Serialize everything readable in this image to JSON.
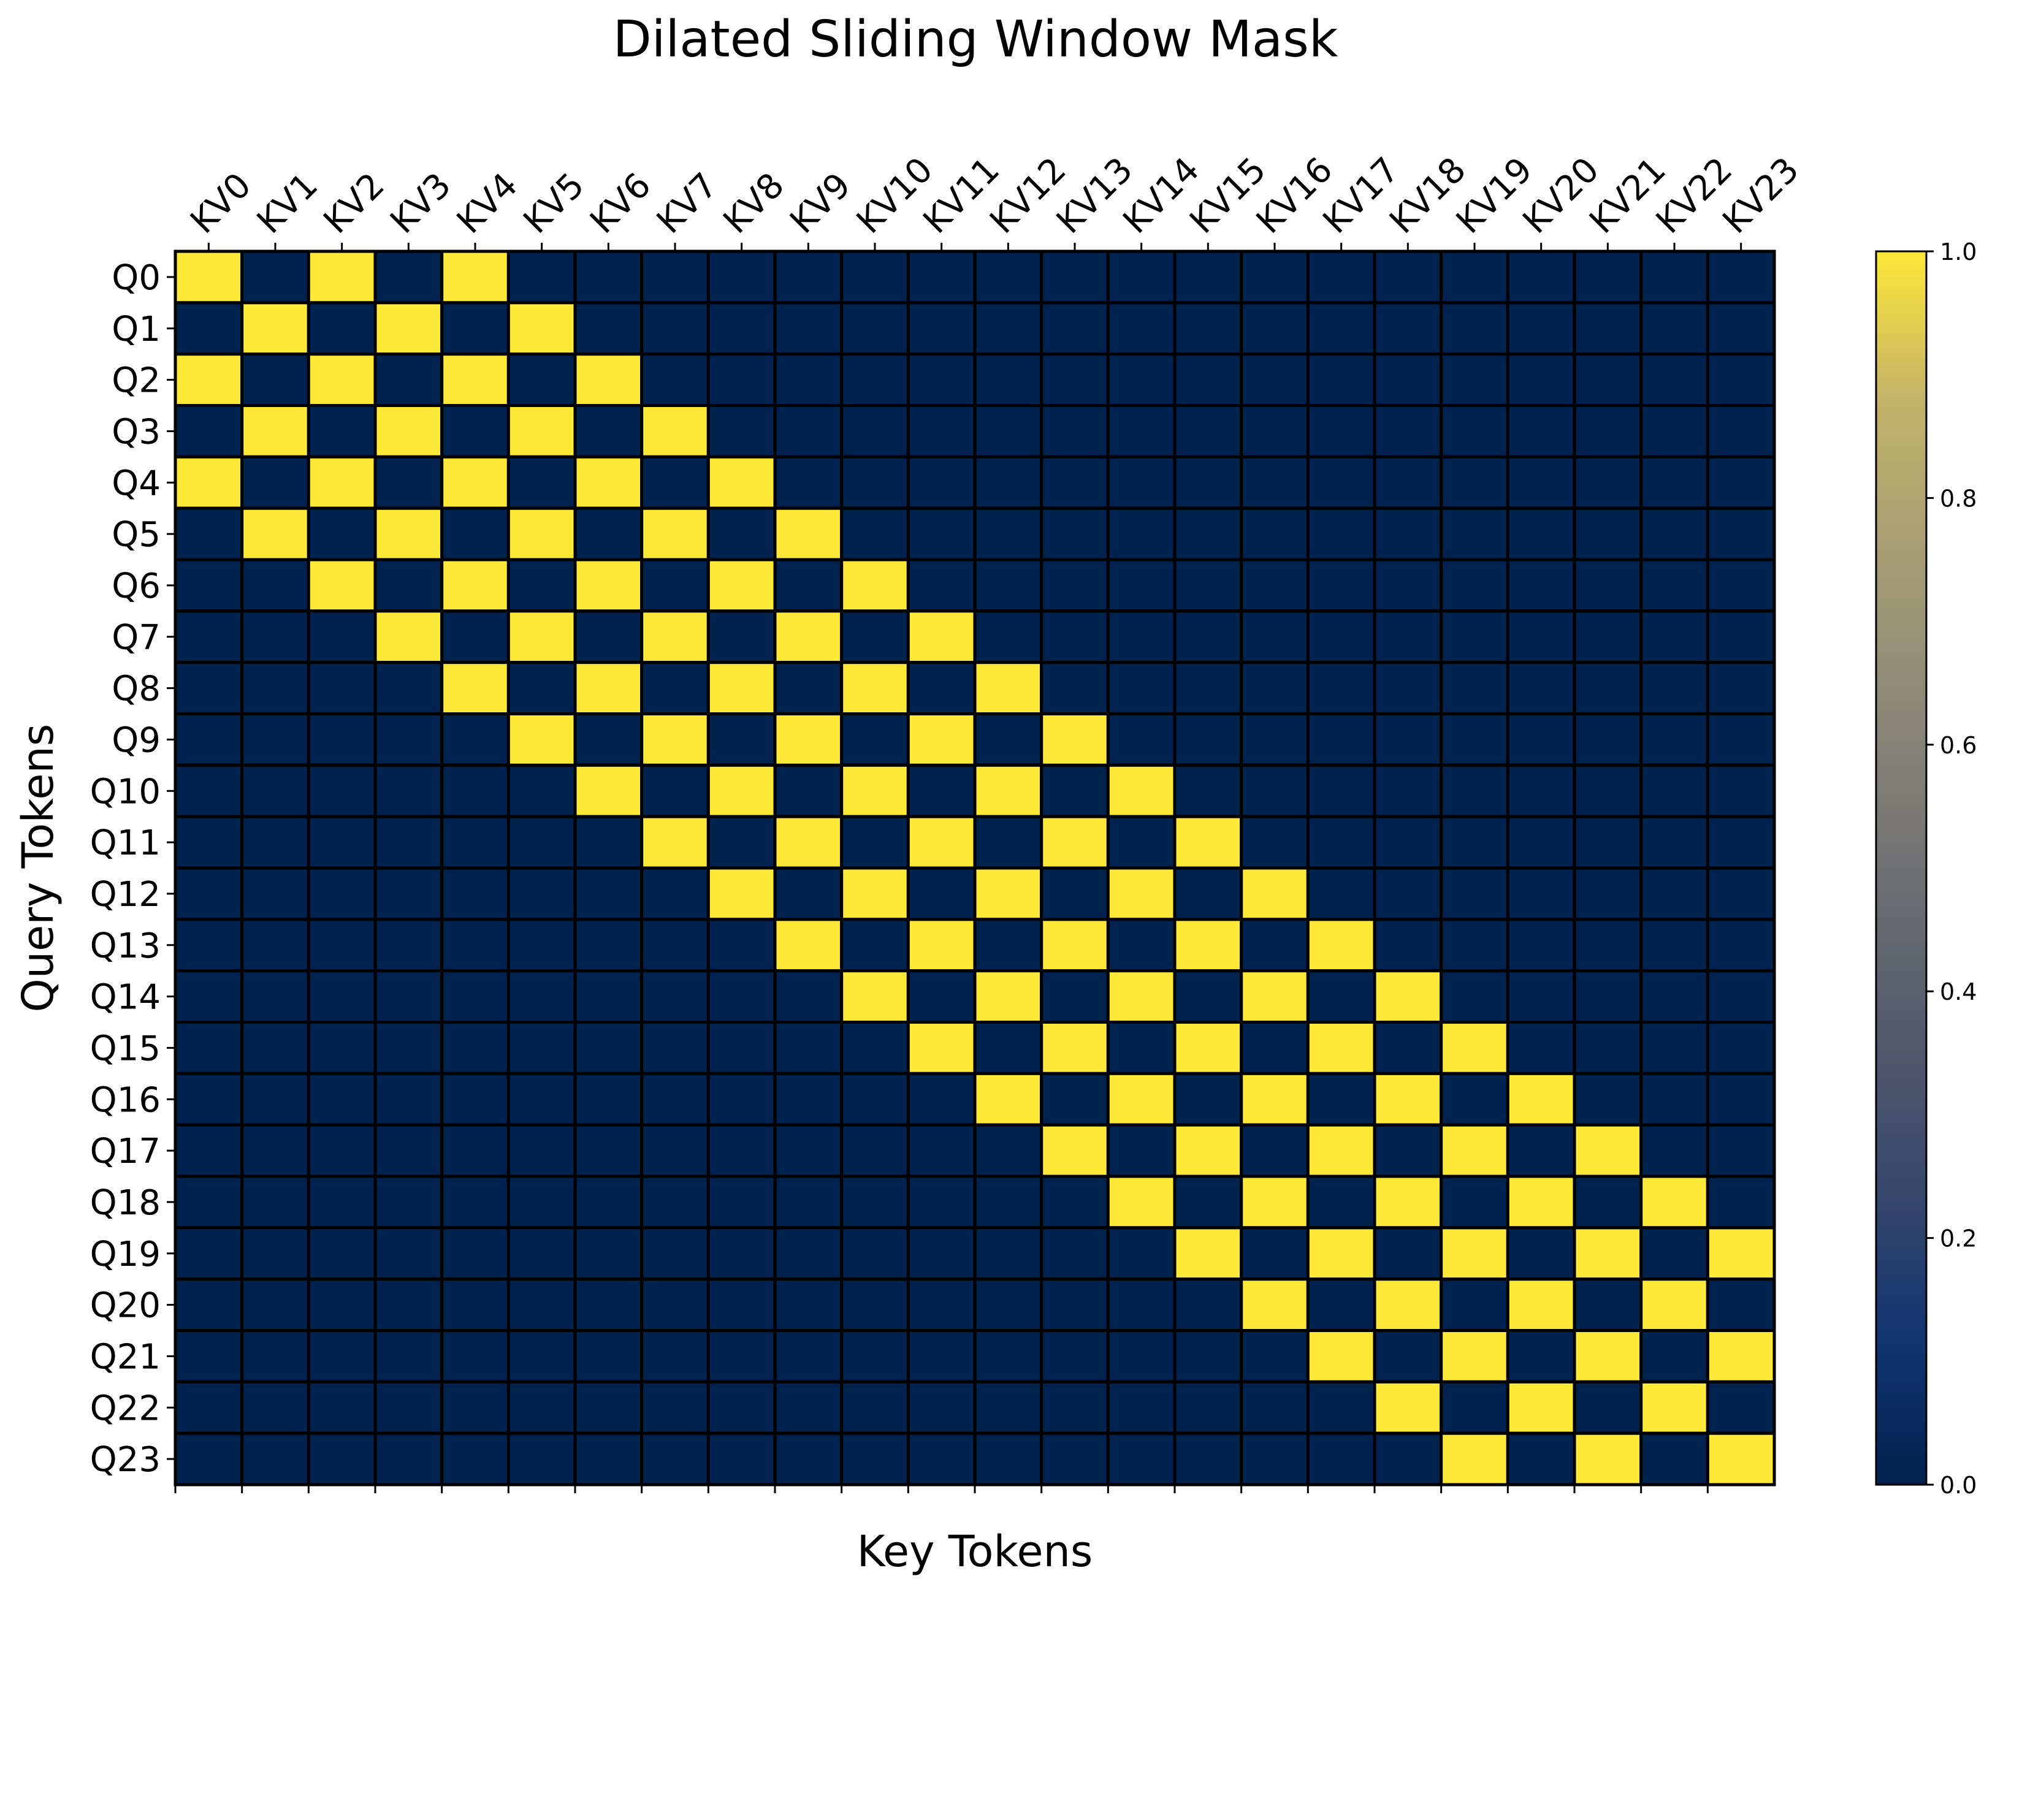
{
  "chart_data": {
    "type": "heatmap",
    "title": "Dilated Sliding Window Mask",
    "xlabel": "Key Tokens",
    "ylabel": "Query Tokens",
    "x_categories": [
      "KV0",
      "KV1",
      "KV2",
      "KV3",
      "KV4",
      "KV5",
      "KV6",
      "KV7",
      "KV8",
      "KV9",
      "KV10",
      "KV11",
      "KV12",
      "KV13",
      "KV14",
      "KV15",
      "KV16",
      "KV17",
      "KV18",
      "KV19",
      "KV20",
      "KV21",
      "KV22",
      "KV23"
    ],
    "y_categories": [
      "Q0",
      "Q1",
      "Q2",
      "Q3",
      "Q4",
      "Q5",
      "Q6",
      "Q7",
      "Q8",
      "Q9",
      "Q10",
      "Q11",
      "Q12",
      "Q13",
      "Q14",
      "Q15",
      "Q16",
      "Q17",
      "Q18",
      "Q19",
      "Q20",
      "Q21",
      "Q22",
      "Q23"
    ],
    "values": [
      [
        1,
        0,
        1,
        0,
        1,
        0,
        0,
        0,
        0,
        0,
        0,
        0,
        0,
        0,
        0,
        0,
        0,
        0,
        0,
        0,
        0,
        0,
        0,
        0
      ],
      [
        0,
        1,
        0,
        1,
        0,
        1,
        0,
        0,
        0,
        0,
        0,
        0,
        0,
        0,
        0,
        0,
        0,
        0,
        0,
        0,
        0,
        0,
        0,
        0
      ],
      [
        1,
        0,
        1,
        0,
        1,
        0,
        1,
        0,
        0,
        0,
        0,
        0,
        0,
        0,
        0,
        0,
        0,
        0,
        0,
        0,
        0,
        0,
        0,
        0
      ],
      [
        0,
        1,
        0,
        1,
        0,
        1,
        0,
        1,
        0,
        0,
        0,
        0,
        0,
        0,
        0,
        0,
        0,
        0,
        0,
        0,
        0,
        0,
        0,
        0
      ],
      [
        1,
        0,
        1,
        0,
        1,
        0,
        1,
        0,
        1,
        0,
        0,
        0,
        0,
        0,
        0,
        0,
        0,
        0,
        0,
        0,
        0,
        0,
        0,
        0
      ],
      [
        0,
        1,
        0,
        1,
        0,
        1,
        0,
        1,
        0,
        1,
        0,
        0,
        0,
        0,
        0,
        0,
        0,
        0,
        0,
        0,
        0,
        0,
        0,
        0
      ],
      [
        0,
        0,
        1,
        0,
        1,
        0,
        1,
        0,
        1,
        0,
        1,
        0,
        0,
        0,
        0,
        0,
        0,
        0,
        0,
        0,
        0,
        0,
        0,
        0
      ],
      [
        0,
        0,
        0,
        1,
        0,
        1,
        0,
        1,
        0,
        1,
        0,
        1,
        0,
        0,
        0,
        0,
        0,
        0,
        0,
        0,
        0,
        0,
        0,
        0
      ],
      [
        0,
        0,
        0,
        0,
        1,
        0,
        1,
        0,
        1,
        0,
        1,
        0,
        1,
        0,
        0,
        0,
        0,
        0,
        0,
        0,
        0,
        0,
        0,
        0
      ],
      [
        0,
        0,
        0,
        0,
        0,
        1,
        0,
        1,
        0,
        1,
        0,
        1,
        0,
        1,
        0,
        0,
        0,
        0,
        0,
        0,
        0,
        0,
        0,
        0
      ],
      [
        0,
        0,
        0,
        0,
        0,
        0,
        1,
        0,
        1,
        0,
        1,
        0,
        1,
        0,
        1,
        0,
        0,
        0,
        0,
        0,
        0,
        0,
        0,
        0
      ],
      [
        0,
        0,
        0,
        0,
        0,
        0,
        0,
        1,
        0,
        1,
        0,
        1,
        0,
        1,
        0,
        1,
        0,
        0,
        0,
        0,
        0,
        0,
        0,
        0
      ],
      [
        0,
        0,
        0,
        0,
        0,
        0,
        0,
        0,
        1,
        0,
        1,
        0,
        1,
        0,
        1,
        0,
        1,
        0,
        0,
        0,
        0,
        0,
        0,
        0
      ],
      [
        0,
        0,
        0,
        0,
        0,
        0,
        0,
        0,
        0,
        1,
        0,
        1,
        0,
        1,
        0,
        1,
        0,
        1,
        0,
        0,
        0,
        0,
        0,
        0
      ],
      [
        0,
        0,
        0,
        0,
        0,
        0,
        0,
        0,
        0,
        0,
        1,
        0,
        1,
        0,
        1,
        0,
        1,
        0,
        1,
        0,
        0,
        0,
        0,
        0
      ],
      [
        0,
        0,
        0,
        0,
        0,
        0,
        0,
        0,
        0,
        0,
        0,
        1,
        0,
        1,
        0,
        1,
        0,
        1,
        0,
        1,
        0,
        0,
        0,
        0
      ],
      [
        0,
        0,
        0,
        0,
        0,
        0,
        0,
        0,
        0,
        0,
        0,
        0,
        1,
        0,
        1,
        0,
        1,
        0,
        1,
        0,
        1,
        0,
        0,
        0
      ],
      [
        0,
        0,
        0,
        0,
        0,
        0,
        0,
        0,
        0,
        0,
        0,
        0,
        0,
        1,
        0,
        1,
        0,
        1,
        0,
        1,
        0,
        1,
        0,
        0
      ],
      [
        0,
        0,
        0,
        0,
        0,
        0,
        0,
        0,
        0,
        0,
        0,
        0,
        0,
        0,
        1,
        0,
        1,
        0,
        1,
        0,
        1,
        0,
        1,
        0
      ],
      [
        0,
        0,
        0,
        0,
        0,
        0,
        0,
        0,
        0,
        0,
        0,
        0,
        0,
        0,
        0,
        1,
        0,
        1,
        0,
        1,
        0,
        1,
        0,
        1
      ],
      [
        0,
        0,
        0,
        0,
        0,
        0,
        0,
        0,
        0,
        0,
        0,
        0,
        0,
        0,
        0,
        0,
        1,
        0,
        1,
        0,
        1,
        0,
        1,
        0
      ],
      [
        0,
        0,
        0,
        0,
        0,
        0,
        0,
        0,
        0,
        0,
        0,
        0,
        0,
        0,
        0,
        0,
        0,
        1,
        0,
        1,
        0,
        1,
        0,
        1
      ],
      [
        0,
        0,
        0,
        0,
        0,
        0,
        0,
        0,
        0,
        0,
        0,
        0,
        0,
        0,
        0,
        0,
        0,
        0,
        1,
        0,
        1,
        0,
        1,
        0
      ],
      [
        0,
        0,
        0,
        0,
        0,
        0,
        0,
        0,
        0,
        0,
        0,
        0,
        0,
        0,
        0,
        0,
        0,
        0,
        0,
        1,
        0,
        1,
        0,
        1
      ]
    ],
    "colormap": "cividis",
    "color_low": "#00224e",
    "color_high": "#fee838",
    "colorbar": {
      "range": [
        0.0,
        1.0
      ],
      "ticks": [
        "0.0",
        "0.2",
        "0.4",
        "0.6",
        "0.8",
        "1.0"
      ],
      "placement": "right"
    },
    "x_tick_position": "top",
    "grid": true
  }
}
